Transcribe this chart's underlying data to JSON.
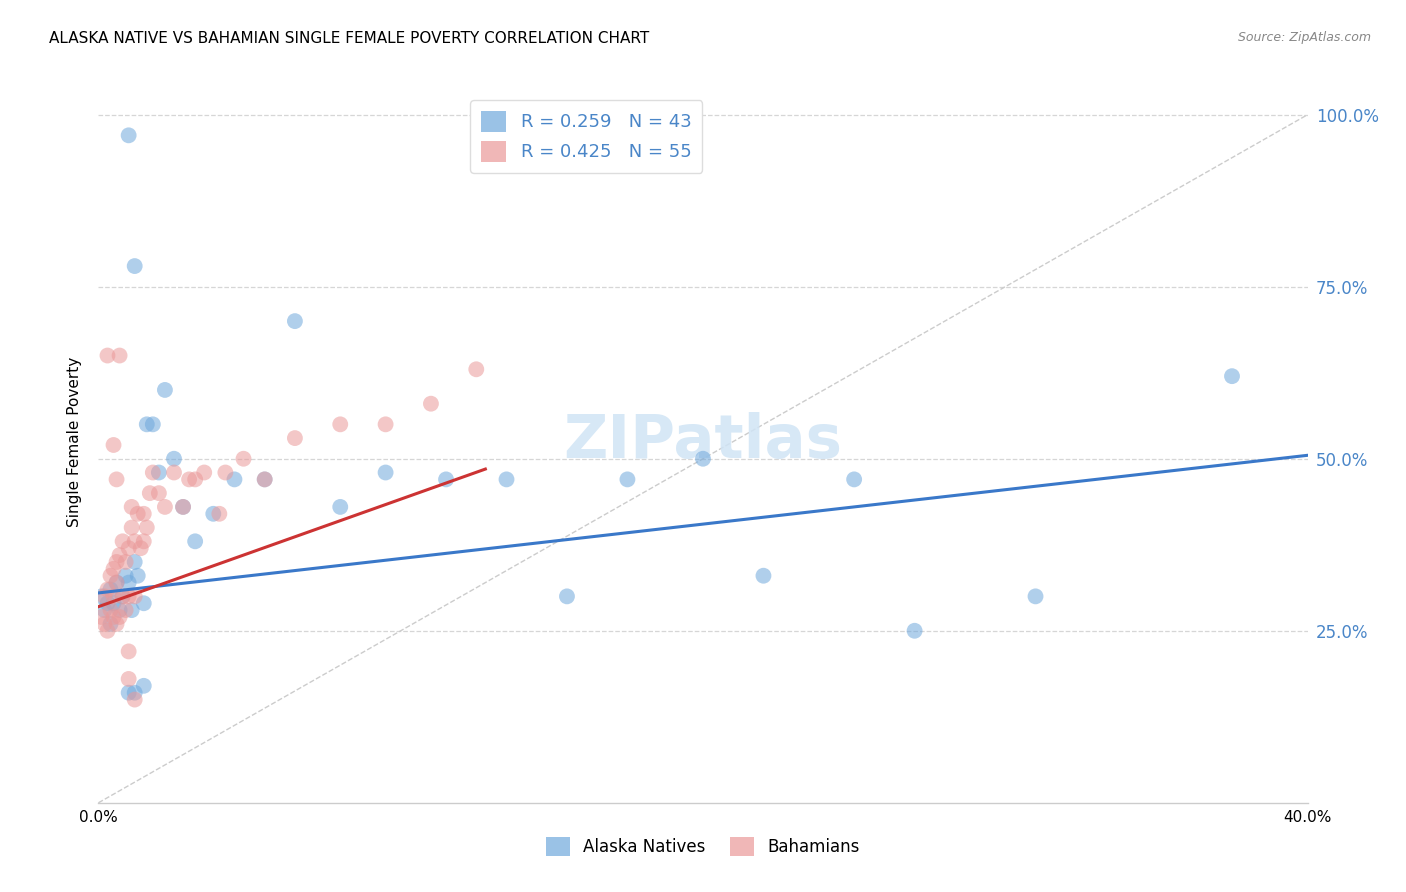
{
  "title": "ALASKA NATIVE VS BAHAMIAN SINGLE FEMALE POVERTY CORRELATION CHART",
  "source": "Source: ZipAtlas.com",
  "ylabel": "Single Female Poverty",
  "xlim": [
    0.0,
    0.4
  ],
  "ylim": [
    0.0,
    1.05
  ],
  "xtick_labels": [
    "0.0%",
    "",
    "",
    "",
    "40.0%"
  ],
  "xtick_values": [
    0.0,
    0.1,
    0.2,
    0.3,
    0.4
  ],
  "ytick_labels": [
    "25.0%",
    "50.0%",
    "75.0%",
    "100.0%"
  ],
  "ytick_values": [
    0.25,
    0.5,
    0.75,
    1.0
  ],
  "alaska_color": "#6fa8dc",
  "bahamian_color": "#ea9999",
  "alaska_R": "0.259",
  "alaska_N": "43",
  "bahamian_R": "0.425",
  "bahamian_N": "55",
  "trendline_alaska_color": "#3a78c9",
  "trendline_bahamian_color": "#cc3333",
  "diagonal_color": "#cccccc",
  "background_color": "#ffffff",
  "grid_color": "#cccccc",
  "watermark_color": "#d0e4f5",
  "alaska_scatter_x": [
    0.001,
    0.002,
    0.003,
    0.004,
    0.004,
    0.005,
    0.006,
    0.007,
    0.008,
    0.009,
    0.01,
    0.011,
    0.012,
    0.013,
    0.015,
    0.016,
    0.018,
    0.02,
    0.022,
    0.025,
    0.028,
    0.032,
    0.038,
    0.045,
    0.055,
    0.065,
    0.08,
    0.095,
    0.115,
    0.135,
    0.155,
    0.175,
    0.2,
    0.22,
    0.25,
    0.27,
    0.31,
    0.375,
    0.01,
    0.012,
    0.015,
    0.01,
    0.012
  ],
  "alaska_scatter_y": [
    0.3,
    0.28,
    0.29,
    0.26,
    0.31,
    0.29,
    0.32,
    0.28,
    0.3,
    0.33,
    0.32,
    0.28,
    0.35,
    0.33,
    0.29,
    0.55,
    0.55,
    0.48,
    0.6,
    0.5,
    0.43,
    0.38,
    0.42,
    0.47,
    0.47,
    0.7,
    0.43,
    0.48,
    0.47,
    0.47,
    0.3,
    0.47,
    0.5,
    0.33,
    0.47,
    0.25,
    0.3,
    0.62,
    0.16,
    0.16,
    0.17,
    0.97,
    0.78
  ],
  "bahamian_scatter_x": [
    0.001,
    0.002,
    0.002,
    0.003,
    0.003,
    0.004,
    0.004,
    0.005,
    0.005,
    0.005,
    0.006,
    0.006,
    0.006,
    0.007,
    0.007,
    0.008,
    0.008,
    0.009,
    0.009,
    0.01,
    0.01,
    0.011,
    0.011,
    0.012,
    0.012,
    0.013,
    0.014,
    0.015,
    0.015,
    0.016,
    0.017,
    0.018,
    0.02,
    0.022,
    0.025,
    0.028,
    0.03,
    0.032,
    0.035,
    0.04,
    0.042,
    0.048,
    0.055,
    0.065,
    0.08,
    0.095,
    0.11,
    0.125,
    0.003,
    0.005,
    0.006,
    0.007,
    0.01,
    0.01,
    0.012
  ],
  "bahamian_scatter_y": [
    0.27,
    0.26,
    0.3,
    0.25,
    0.31,
    0.28,
    0.33,
    0.27,
    0.3,
    0.34,
    0.26,
    0.32,
    0.35,
    0.27,
    0.36,
    0.3,
    0.38,
    0.28,
    0.35,
    0.3,
    0.37,
    0.4,
    0.43,
    0.38,
    0.3,
    0.42,
    0.37,
    0.38,
    0.42,
    0.4,
    0.45,
    0.48,
    0.45,
    0.43,
    0.48,
    0.43,
    0.47,
    0.47,
    0.48,
    0.42,
    0.48,
    0.5,
    0.47,
    0.53,
    0.55,
    0.55,
    0.58,
    0.63,
    0.65,
    0.52,
    0.47,
    0.65,
    0.22,
    0.18,
    0.15
  ],
  "alaska_trend_x0": 0.0,
  "alaska_trend_x1": 0.4,
  "alaska_trend_y0": 0.305,
  "alaska_trend_y1": 0.505,
  "bahamian_trend_x0": 0.0,
  "bahamian_trend_x1": 0.128,
  "bahamian_trend_y0": 0.285,
  "bahamian_trend_y1": 0.485
}
